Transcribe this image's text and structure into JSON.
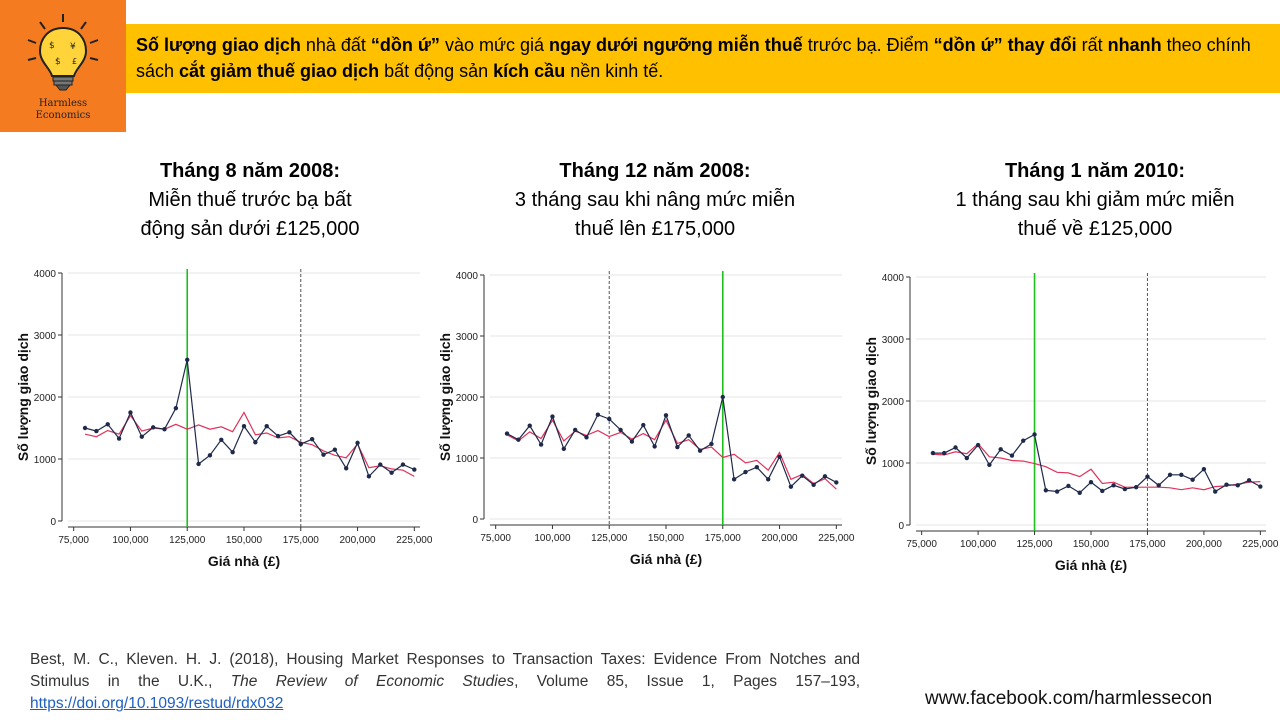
{
  "logo": {
    "text_line1": "Harmless",
    "text_line2": "Economics",
    "icon": "lightbulb-icon",
    "background": "#f47b20"
  },
  "banner": {
    "background": "#ffc000",
    "segments": [
      {
        "text": "Số lượng giao dịch",
        "bold": true
      },
      {
        "text": " nhà đất ",
        "bold": false
      },
      {
        "text": "“dồn ứ”",
        "bold": true
      },
      {
        "text": " vào mức giá ",
        "bold": false
      },
      {
        "text": "ngay dưới ngưỡng miễn thuế",
        "bold": true
      },
      {
        "text": " trước bạ. Điểm ",
        "bold": false
      },
      {
        "text": "“dồn ứ” thay đổi",
        "bold": true
      },
      {
        "text": " rất ",
        "bold": false
      },
      {
        "text": "nhanh",
        "bold": true
      },
      {
        "text": " theo chính sách ",
        "bold": false
      },
      {
        "text": "cắt giảm thuế giao dịch",
        "bold": true
      },
      {
        "text": " bất động sản ",
        "bold": false
      },
      {
        "text": "kích cầu",
        "bold": true
      },
      {
        "text": " nền kinh tế.",
        "bold": false
      }
    ]
  },
  "panels": [
    {
      "title_bold": "Tháng 8 năm 2008:",
      "title_line2": "Miễn thuế trước bạ bất",
      "title_line3": "động sản dưới £125,000"
    },
    {
      "title_bold": "Tháng 12 năm 2008:",
      "title_line2": "3 tháng sau khi nâng mức miễn",
      "title_line3": "thuế lên £175,000"
    },
    {
      "title_bold": "Tháng 1 năm 2010:",
      "title_line2": "1 tháng sau khi giảm mức miễn",
      "title_line3": "thuế về £125,000"
    }
  ],
  "colors": {
    "actual": "#1f2a4a",
    "counterfactual": "#e0325a",
    "green_line": "#1fbf1f",
    "dotted_line": "#555555"
  },
  "chart_data": [
    {
      "type": "line",
      "xlabel": "Giá nhà (£)",
      "ylabel": "Số lượng giao dịch",
      "xlim": [
        72500,
        227500
      ],
      "ylim": [
        0,
        4000
      ],
      "xticks": [
        75000,
        100000,
        125000,
        150000,
        175000,
        200000,
        225000
      ],
      "xtick_labels": [
        "75,000",
        "100,000",
        "125,000",
        "150,000",
        "175,000",
        "200,000",
        "225,000"
      ],
      "yticks": [
        0,
        1000,
        2000,
        3000,
        4000
      ],
      "ytick_labels": [
        "0",
        "1000",
        "2000",
        "3000",
        "4000"
      ],
      "green_vline": 125000,
      "dotted_vline": 175000,
      "x": [
        80000,
        85000,
        90000,
        95000,
        100000,
        105000,
        110000,
        115000,
        120000,
        125000,
        130000,
        135000,
        140000,
        145000,
        150000,
        155000,
        160000,
        165000,
        170000,
        175000,
        180000,
        185000,
        190000,
        195000,
        200000,
        205000,
        210000,
        215000,
        220000,
        225000
      ],
      "series": [
        {
          "values": [
            1500,
            1450,
            1560,
            1330,
            1750,
            1360,
            1510,
            1480,
            1820,
            2600,
            920,
            1060,
            1310,
            1110,
            1530,
            1270,
            1530,
            1370,
            1430,
            1240,
            1320,
            1070,
            1150,
            850,
            1260,
            720,
            910,
            780,
            910,
            830
          ]
        },
        {
          "values": [
            1400,
            1360,
            1460,
            1400,
            1700,
            1450,
            1500,
            1480,
            1560,
            1480,
            1550,
            1480,
            1520,
            1440,
            1750,
            1390,
            1420,
            1340,
            1360,
            1270,
            1230,
            1130,
            1060,
            1020,
            1240,
            860,
            890,
            840,
            820,
            720
          ]
        }
      ]
    },
    {
      "type": "line",
      "xlabel": "Giá nhà (£)",
      "ylabel": "Số lượng giao dịch",
      "xlim": [
        72500,
        227500
      ],
      "ylim": [
        0,
        4000
      ],
      "xticks": [
        75000,
        100000,
        125000,
        150000,
        175000,
        200000,
        225000
      ],
      "xtick_labels": [
        "75,000",
        "100,000",
        "125,000",
        "150,000",
        "175,000",
        "200,000",
        "225,000"
      ],
      "yticks": [
        0,
        1000,
        2000,
        3000,
        4000
      ],
      "ytick_labels": [
        "0",
        "1000",
        "2000",
        "3000",
        "4000"
      ],
      "green_vline": 175000,
      "dotted_vline": 125000,
      "x": [
        80000,
        85000,
        90000,
        95000,
        100000,
        105000,
        110000,
        115000,
        120000,
        125000,
        130000,
        135000,
        140000,
        145000,
        150000,
        155000,
        160000,
        165000,
        170000,
        175000,
        180000,
        185000,
        190000,
        195000,
        200000,
        205000,
        210000,
        215000,
        220000,
        225000
      ],
      "series": [
        {
          "values": [
            1400,
            1300,
            1530,
            1220,
            1680,
            1150,
            1460,
            1340,
            1710,
            1640,
            1460,
            1270,
            1540,
            1190,
            1700,
            1180,
            1370,
            1120,
            1230,
            2000,
            650,
            770,
            850,
            650,
            1020,
            530,
            710,
            560,
            700,
            600
          ]
        },
        {
          "values": [
            1380,
            1280,
            1430,
            1320,
            1620,
            1280,
            1440,
            1370,
            1450,
            1350,
            1420,
            1310,
            1400,
            1300,
            1620,
            1240,
            1300,
            1140,
            1180,
            1010,
            1060,
            920,
            960,
            800,
            1090,
            650,
            730,
            580,
            660,
            490
          ]
        }
      ]
    },
    {
      "type": "line",
      "xlabel": "Giá nhà (£)",
      "ylabel": "Số lượng giao dịch",
      "xlim": [
        72500,
        227500
      ],
      "ylim": [
        0,
        4000
      ],
      "xticks": [
        75000,
        100000,
        125000,
        150000,
        175000,
        200000,
        225000
      ],
      "xtick_labels": [
        "75,000",
        "100,000",
        "125,000",
        "150,000",
        "175,000",
        "200,000",
        "225,000"
      ],
      "yticks": [
        0,
        1000,
        2000,
        3000,
        4000
      ],
      "ytick_labels": [
        "0",
        "1000",
        "2000",
        "3000",
        "4000"
      ],
      "green_vline": 125000,
      "dotted_vline": 175000,
      "x": [
        80000,
        85000,
        90000,
        95000,
        100000,
        105000,
        110000,
        115000,
        120000,
        125000,
        130000,
        135000,
        140000,
        145000,
        150000,
        155000,
        160000,
        165000,
        170000,
        175000,
        180000,
        185000,
        190000,
        195000,
        200000,
        205000,
        210000,
        215000,
        220000,
        225000
      ],
      "series": [
        {
          "values": [
            1160,
            1160,
            1250,
            1080,
            1290,
            970,
            1220,
            1120,
            1360,
            1460,
            560,
            540,
            630,
            520,
            690,
            550,
            640,
            580,
            610,
            780,
            640,
            810,
            810,
            730,
            900,
            540,
            650,
            640,
            720,
            620
          ]
        },
        {
          "values": [
            1140,
            1130,
            1180,
            1150,
            1310,
            1100,
            1080,
            1040,
            1030,
            990,
            940,
            850,
            840,
            780,
            900,
            670,
            690,
            610,
            610,
            610,
            610,
            600,
            570,
            600,
            570,
            620,
            630,
            660,
            690,
            700
          ]
        }
      ]
    }
  ],
  "citation": {
    "authors": "Best, M. C., Kleven. H. J. (2018), Housing Market Responses to Transaction Taxes: Evidence From Notches and Stimulus in the U.K., ",
    "journal": "The Review of Economic Studies",
    "rest": ", Volume 85, Issue 1, Pages 157–193, ",
    "link": "https://doi.org/10.1093/restud/rdx032"
  },
  "footer": {
    "url": "www.facebook.com/harmlessecon"
  }
}
